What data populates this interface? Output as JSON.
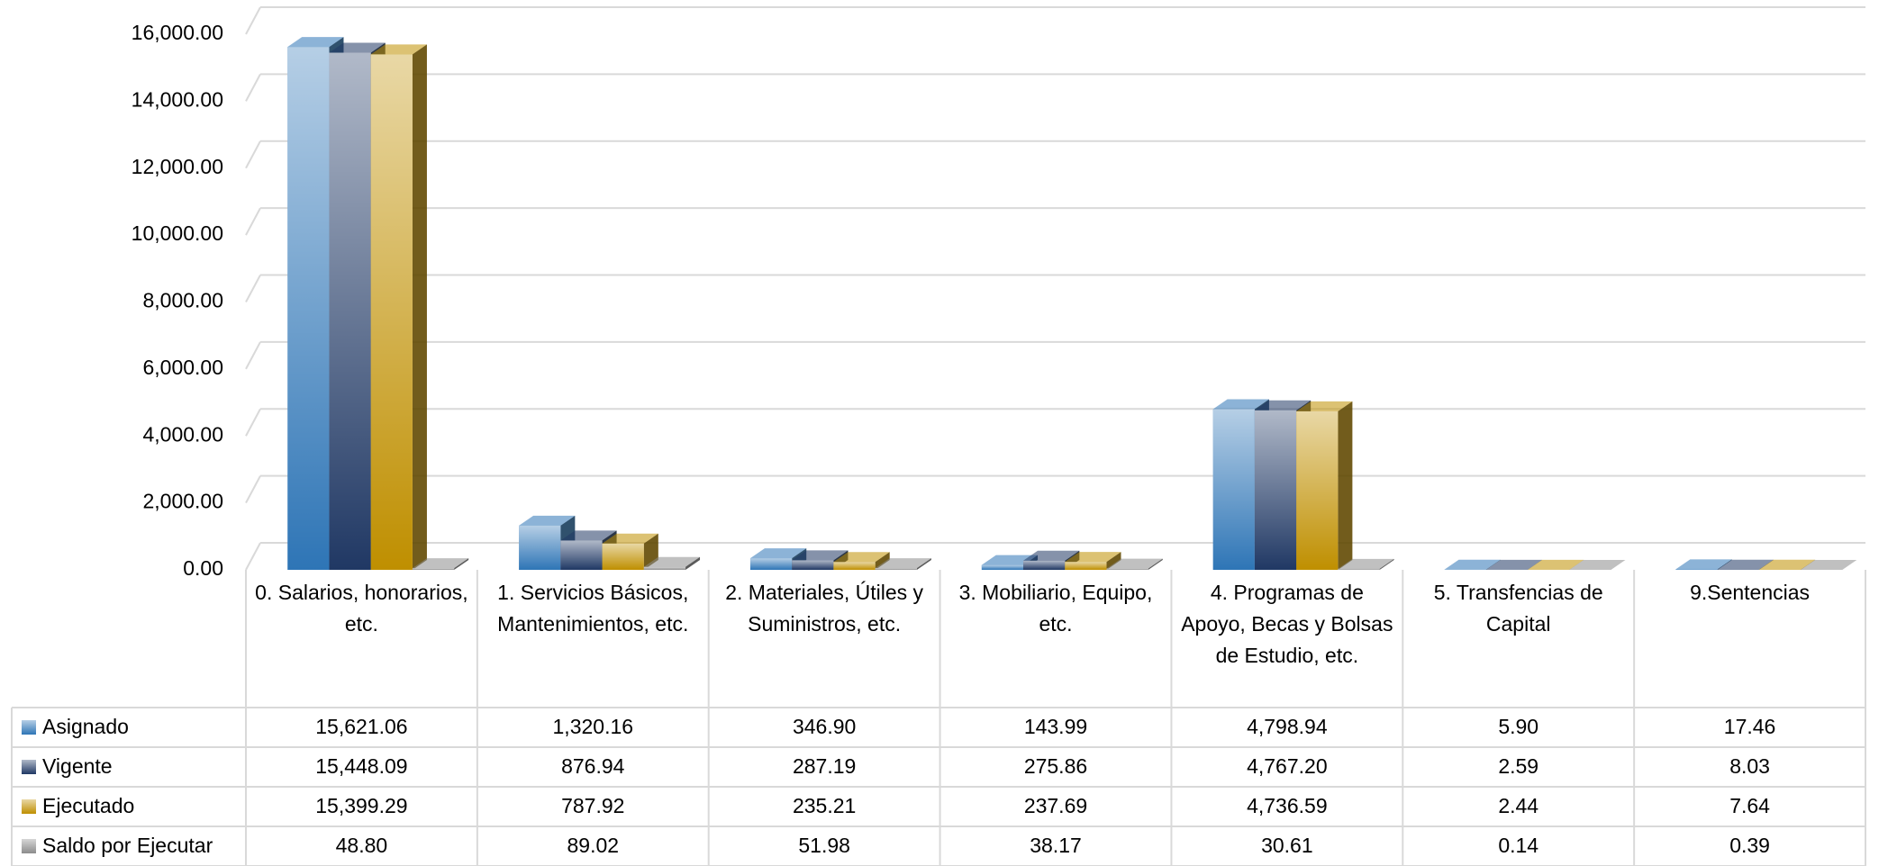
{
  "chart_data": {
    "type": "bar3d",
    "categories": [
      "0. Salarios, honorarios, etc.",
      "1. Servicios Básicos, Mantenimientos, etc.",
      "2. Materiales, Útiles y Suministros, etc.",
      "3. Mobiliario, Equipo, etc.",
      "4. Programas de Apoyo,  Becas y Bolsas de Estudio, etc.",
      "5. Transfencias de Capital",
      "9.Sentencias"
    ],
    "series": [
      {
        "name": "Asignado",
        "color": "#2e75b6",
        "values": [
          15621.06,
          1320.16,
          346.9,
          143.99,
          4798.94,
          5.9,
          17.46
        ],
        "value_labels": [
          "15,621.06",
          "1,320.16",
          "346.90",
          "143.99",
          "4,798.94",
          "5.90",
          "17.46"
        ]
      },
      {
        "name": "Vigente",
        "color": "#203864",
        "values": [
          15448.09,
          876.94,
          287.19,
          275.86,
          4767.2,
          2.59,
          8.03
        ],
        "value_labels": [
          "15,448.09",
          "876.94",
          "287.19",
          "275.86",
          "4,767.20",
          "2.59",
          "8.03"
        ]
      },
      {
        "name": "Ejecutado",
        "color": "#bf8f00",
        "values": [
          15399.29,
          787.92,
          235.21,
          237.69,
          4736.59,
          2.44,
          7.64
        ],
        "value_labels": [
          "15,399.29",
          "787.92",
          "235.21",
          "237.69",
          "4,736.59",
          "2.44",
          "7.64"
        ]
      },
      {
        "name": "Saldo por Ejecutar",
        "color": "#8c8c8c",
        "values": [
          48.8,
          89.02,
          51.98,
          38.17,
          30.61,
          0.14,
          0.39
        ],
        "value_labels": [
          "48.80",
          "89.02",
          "51.98",
          "38.17",
          "30.61",
          "0.14",
          "0.39"
        ]
      }
    ],
    "ylim": [
      0,
      16000
    ],
    "yticks": [
      {
        "value": 0,
        "label": "0.00"
      },
      {
        "value": 2000,
        "label": "2,000.00"
      },
      {
        "value": 4000,
        "label": "4,000.00"
      },
      {
        "value": 6000,
        "label": "6,000.00"
      },
      {
        "value": 8000,
        "label": "8,000.00"
      },
      {
        "value": 10000,
        "label": "10,000.00"
      },
      {
        "value": 12000,
        "label": "12,000.00"
      },
      {
        "value": 14000,
        "label": "14,000.00"
      },
      {
        "value": 16000,
        "label": "16,000.00"
      }
    ],
    "grid": true
  }
}
